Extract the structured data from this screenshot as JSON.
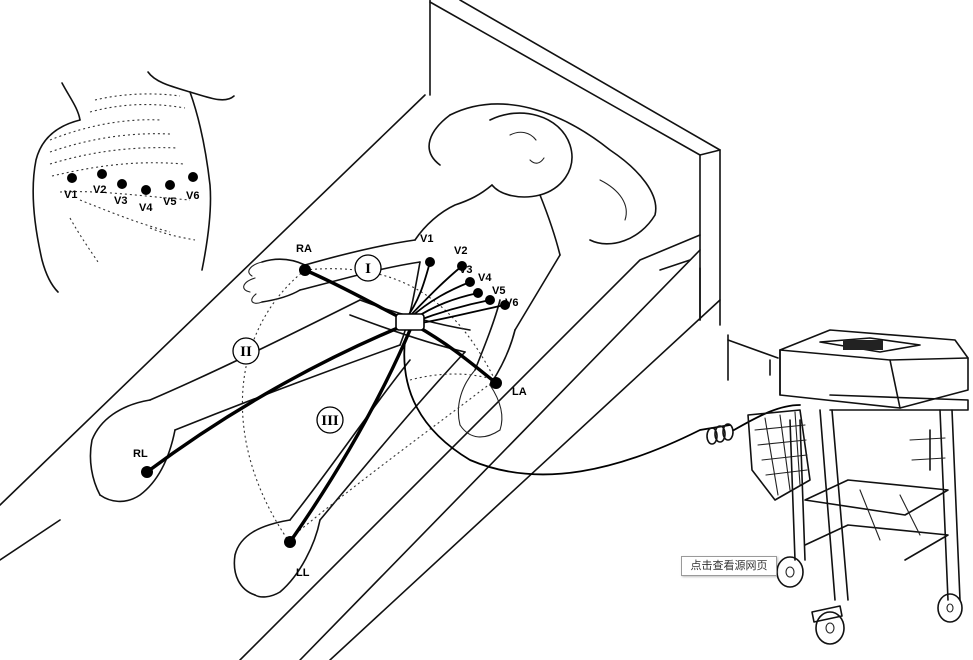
{
  "chest_inset": {
    "electrodes": [
      "V1",
      "V2",
      "V3",
      "V4",
      "V5",
      "V6"
    ]
  },
  "patient": {
    "limb_electrodes": {
      "ra": "RA",
      "la": "LA",
      "rl": "RL",
      "ll": "LL"
    },
    "precordial_electrodes": [
      "V1",
      "V2",
      "V3",
      "V4",
      "V5",
      "V6"
    ],
    "leads": [
      "I",
      "II",
      "III"
    ]
  },
  "overlay": {
    "view_source_label": "点击查看源网页"
  }
}
